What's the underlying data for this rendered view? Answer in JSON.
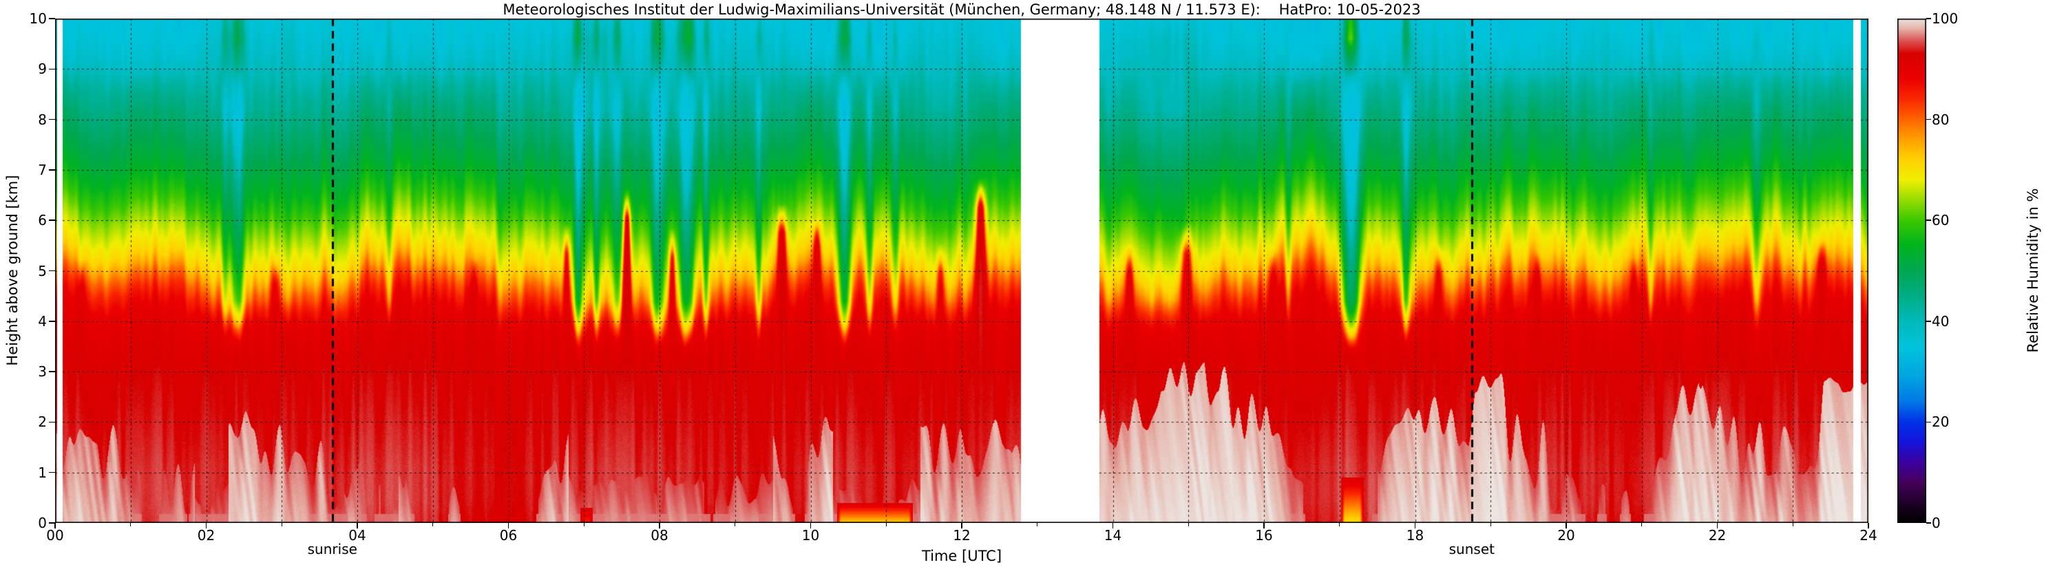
{
  "page": {
    "background": "#ffffff"
  },
  "chart_data": {
    "type": "heatmap",
    "title": "Meteorologisches Institut der Ludwig-Maximilians-Universität (München, Germany; 48.148 N / 11.573 E):    HatPro: 10-05-2023",
    "xlabel": "Time [UTC]",
    "ylabel": "Height above ground [km]",
    "colorbar_label": "Relative Humidity in %",
    "x_range": [
      0,
      24
    ],
    "y_range": [
      0,
      10
    ],
    "value_range": [
      0,
      100
    ],
    "grid": {
      "x_step_h": 1,
      "y_step_km": 1,
      "style": "dashed"
    },
    "x_ticks": {
      "values": [
        0,
        2,
        4,
        6,
        8,
        10,
        12,
        14,
        16,
        18,
        20,
        22,
        24
      ],
      "labels": [
        "00",
        "02",
        "04",
        "06",
        "08",
        "10",
        "12",
        "14",
        "16",
        "18",
        "20",
        "22",
        "24"
      ],
      "minor": [
        1,
        3,
        5,
        7,
        9,
        11,
        13,
        15,
        17,
        19,
        21,
        23
      ]
    },
    "y_ticks": {
      "values": [
        0,
        1,
        2,
        3,
        4,
        5,
        6,
        7,
        8,
        9,
        10
      ],
      "labels": [
        "0",
        "1",
        "2",
        "3",
        "4",
        "5",
        "6",
        "7",
        "8",
        "9",
        "10"
      ]
    },
    "colorbar_ticks": [
      0,
      20,
      40,
      60,
      80,
      100
    ],
    "annotations": {
      "sunrise": {
        "label": "sunrise",
        "time_utc": 3.67
      },
      "sunset": {
        "label": "sunset",
        "time_utc": 18.75
      }
    },
    "gaps": [
      [
        0.03,
        0.1
      ],
      [
        12.78,
        13.82
      ],
      [
        23.8,
        23.9
      ]
    ],
    "colormap": [
      [
        0,
        "#000000"
      ],
      [
        3,
        "#16001e"
      ],
      [
        8,
        "#46005a"
      ],
      [
        12,
        "#3c00a0"
      ],
      [
        16,
        "#1414dc"
      ],
      [
        20,
        "#0032e6"
      ],
      [
        24,
        "#0078e6"
      ],
      [
        29,
        "#00a5e0"
      ],
      [
        35,
        "#00c3dc"
      ],
      [
        40,
        "#00b9b9"
      ],
      [
        45,
        "#00ad85"
      ],
      [
        50,
        "#00a751"
      ],
      [
        55,
        "#00b41e"
      ],
      [
        60,
        "#3cc800"
      ],
      [
        64,
        "#96dc00"
      ],
      [
        68,
        "#f0ee00"
      ],
      [
        72,
        "#ffd200"
      ],
      [
        76,
        "#ffa000"
      ],
      [
        80,
        "#ff6400"
      ],
      [
        84,
        "#fa2800"
      ],
      [
        88,
        "#eb0000"
      ],
      [
        93,
        "#d70000"
      ],
      [
        96,
        "#dc6464"
      ],
      [
        98,
        "#e6b4aa"
      ],
      [
        100,
        "#ece4e0"
      ]
    ],
    "profile": {
      "heights_km": [
        0,
        0.4,
        1.0,
        1.6,
        2.2,
        2.8,
        3.4,
        3.9,
        4.2,
        4.5,
        4.8,
        5.0,
        5.2,
        5.5,
        5.8,
        6.1,
        6.4,
        6.7,
        7.0,
        7.4,
        7.8,
        8.2,
        8.6,
        8.9,
        9.1,
        9.4,
        9.7,
        10.0,
        11.0,
        12.0
      ],
      "rh_percent": [
        93.5,
        94,
        94,
        93.5,
        93,
        92.5,
        91.5,
        90,
        88.5,
        85,
        80,
        75.5,
        72,
        68.5,
        65.5,
        62,
        58.5,
        55.5,
        53,
        50.5,
        48,
        45.5,
        43,
        40,
        38,
        36.5,
        35.5,
        35,
        34,
        33.5
      ]
    },
    "dry_intrusions": [
      {
        "t": 2.25,
        "sigma_h": 0.05,
        "amp_km": 1.1,
        "z_reach_km": 5.6
      },
      {
        "t": 2.42,
        "sigma_h": 0.09,
        "amp_km": 1.8,
        "z_reach_km": 5.0
      },
      {
        "t": 4.42,
        "sigma_h": 0.05,
        "amp_km": 1.1,
        "z_reach_km": 5.4
      },
      {
        "t": 6.92,
        "sigma_h": 0.05,
        "amp_km": 1.7,
        "z_reach_km": 4.7
      },
      {
        "t": 7.17,
        "sigma_h": 0.04,
        "amp_km": 1.2,
        "z_reach_km": 5.1
      },
      {
        "t": 7.44,
        "sigma_h": 0.06,
        "amp_km": 1.5,
        "z_reach_km": 4.9
      },
      {
        "t": 7.97,
        "sigma_h": 0.09,
        "amp_km": 1.9,
        "z_reach_km": 4.4
      },
      {
        "t": 8.37,
        "sigma_h": 0.1,
        "amp_km": 2.1,
        "z_reach_km": 4.3
      },
      {
        "t": 8.62,
        "sigma_h": 0.04,
        "amp_km": 1.3,
        "z_reach_km": 4.9
      },
      {
        "t": 9.32,
        "sigma_h": 0.04,
        "amp_km": 0.9,
        "z_reach_km": 5.4
      },
      {
        "t": 10.45,
        "sigma_h": 0.09,
        "amp_km": 2.5,
        "z_reach_km": 4.1
      },
      {
        "t": 10.78,
        "sigma_h": 0.05,
        "amp_km": 1.3,
        "z_reach_km": 4.8
      },
      {
        "t": 11.12,
        "sigma_h": 0.05,
        "amp_km": 1.1,
        "z_reach_km": 5.0
      },
      {
        "t": 16.32,
        "sigma_h": 0.04,
        "amp_km": 0.9,
        "z_reach_km": 5.3
      },
      {
        "t": 17.15,
        "sigma_h": 0.11,
        "amp_km": 3.3,
        "z_reach_km": 4.2
      },
      {
        "t": 17.88,
        "sigma_h": 0.06,
        "amp_km": 1.7,
        "z_reach_km": 4.8
      },
      {
        "t": 21.12,
        "sigma_h": 0.04,
        "amp_km": 0.9,
        "z_reach_km": 5.4
      },
      {
        "t": 22.52,
        "sigma_h": 0.07,
        "amp_km": 1.1,
        "z_reach_km": 5.2
      }
    ],
    "moist_plumes": [
      {
        "t": 0.35,
        "sigma_h": 0.05,
        "z_top_km": 4.9
      },
      {
        "t": 2.92,
        "sigma_h": 0.05,
        "z_top_km": 5.0
      },
      {
        "t": 5.55,
        "sigma_h": 0.04,
        "z_top_km": 4.9
      },
      {
        "t": 6.77,
        "sigma_h": 0.04,
        "z_top_km": 5.6
      },
      {
        "t": 7.57,
        "sigma_h": 0.05,
        "z_top_km": 6.3
      },
      {
        "t": 8.17,
        "sigma_h": 0.04,
        "z_top_km": 5.5
      },
      {
        "t": 9.62,
        "sigma_h": 0.06,
        "z_top_km": 6.0
      },
      {
        "t": 10.08,
        "sigma_h": 0.04,
        "z_top_km": 5.7
      },
      {
        "t": 11.72,
        "sigma_h": 0.05,
        "z_top_km": 5.2
      },
      {
        "t": 12.25,
        "sigma_h": 0.06,
        "z_top_km": 6.5
      },
      {
        "t": 14.22,
        "sigma_h": 0.05,
        "z_top_km": 5.2
      },
      {
        "t": 14.97,
        "sigma_h": 0.08,
        "z_top_km": 5.6
      },
      {
        "t": 16.12,
        "sigma_h": 0.05,
        "z_top_km": 5.1
      },
      {
        "t": 18.32,
        "sigma_h": 0.05,
        "z_top_km": 5.2
      },
      {
        "t": 19.62,
        "sigma_h": 0.04,
        "z_top_km": 5.0
      },
      {
        "t": 20.9,
        "sigma_h": 0.04,
        "z_top_km": 4.9
      },
      {
        "t": 23.38,
        "sigma_h": 0.06,
        "z_top_km": 5.3
      }
    ],
    "surface_dry_periods": [
      {
        "t0": 6.95,
        "t1": 7.12,
        "rh": 85,
        "depth_km": 0.3
      },
      {
        "t0": 10.35,
        "t1": 11.35,
        "rh": 72,
        "depth_km": 0.4
      },
      {
        "t0": 17.02,
        "t1": 17.32,
        "rh": 70,
        "depth_km": 0.9
      }
    ],
    "cloud_suppress_windows": [
      [
        1.85,
        2.3,
        0.25
      ],
      [
        4.25,
        4.55,
        0.2
      ],
      [
        6.8,
        9.5,
        0.35
      ],
      [
        10.3,
        11.45,
        0.2
      ],
      [
        16.85,
        17.5,
        0.15
      ]
    ],
    "rh_grid": {
      "times_utc": [
        0,
        2,
        4,
        6,
        8,
        10,
        12,
        14,
        16,
        18,
        20,
        22,
        24
      ],
      "heights_km": [
        0,
        1,
        2,
        3,
        4,
        5,
        6,
        7,
        8,
        9,
        10
      ],
      "rh": [
        [
          97,
          92,
          95,
          97,
          90,
          93,
          96,
          97,
          96,
          95,
          97,
          96,
          97
        ],
        [
          99,
          93,
          97,
          98,
          91,
          90,
          98,
          98,
          97,
          96,
          98,
          95,
          98
        ],
        [
          98,
          94,
          96,
          97,
          92,
          91,
          97,
          98,
          96,
          95,
          97,
          94,
          97
        ],
        [
          93,
          92,
          93,
          94,
          92,
          90,
          94,
          94,
          93,
          93,
          94,
          93,
          94
        ],
        [
          90,
          89,
          90,
          90,
          88,
          76,
          90,
          90,
          89,
          88,
          90,
          89,
          90
        ],
        [
          74,
          70,
          75,
          74,
          66,
          55,
          76,
          75,
          73,
          72,
          75,
          70,
          74
        ],
        [
          62,
          55,
          62,
          61,
          55,
          48,
          63,
          62,
          60,
          58,
          62,
          57,
          62
        ],
        [
          52,
          48,
          52,
          51,
          47,
          44,
          53,
          52,
          51,
          49,
          52,
          50,
          52
        ],
        [
          46,
          43,
          46,
          46,
          42,
          40,
          47,
          46,
          45,
          44,
          46,
          44,
          46
        ],
        [
          38,
          37,
          38,
          38,
          36,
          39,
          38,
          38,
          37,
          36,
          38,
          37,
          38
        ],
        [
          35,
          36,
          35,
          35,
          35,
          40,
          35,
          35,
          36,
          34,
          35,
          35,
          35
        ]
      ]
    }
  }
}
